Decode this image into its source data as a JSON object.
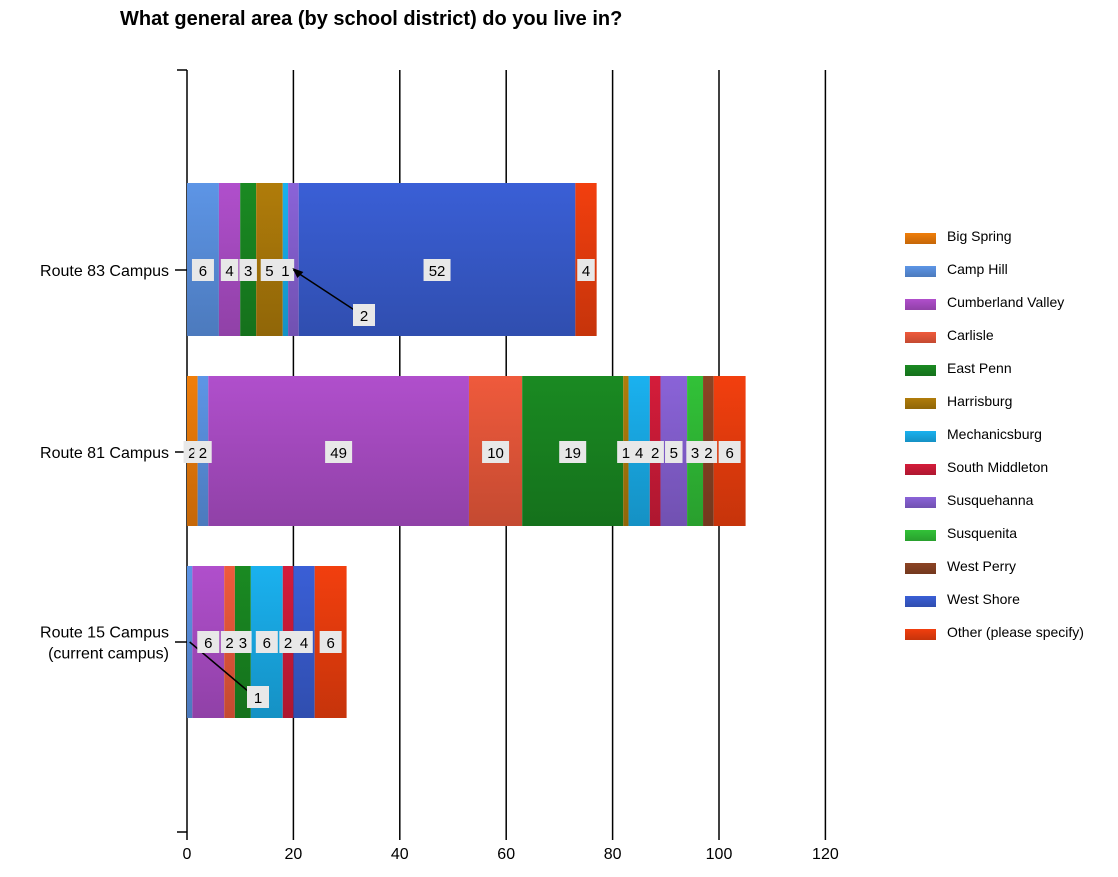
{
  "chart_data": {
    "type": "bar",
    "orientation": "horizontal",
    "stacked": true,
    "title": "What general area (by school district) do you live in?",
    "xlabel": "",
    "ylabel": "",
    "xlim": [
      0,
      120
    ],
    "x_ticks": [
      "0",
      "20",
      "40",
      "60",
      "80",
      "100",
      "120"
    ],
    "grid": true,
    "legend_position": "right",
    "categories": [
      [
        "Route 83 Campus"
      ],
      [
        "Route 81 Campus"
      ],
      [
        "Route 15 Campus",
        "(current campus)"
      ]
    ],
    "series": [
      {
        "name": "Big Spring",
        "color": "#f07e0a",
        "values": [
          0,
          2,
          0
        ]
      },
      {
        "name": "Camp Hill",
        "color": "#5d95e6",
        "values": [
          6,
          2,
          1
        ]
      },
      {
        "name": "Cumberland Valley",
        "color": "#b04fcc",
        "values": [
          4,
          49,
          6
        ]
      },
      {
        "name": "Carlisle",
        "color": "#ef5a3c",
        "values": [
          0,
          10,
          2
        ]
      },
      {
        "name": "East Penn",
        "color": "#1a8a22",
        "values": [
          3,
          19,
          3
        ]
      },
      {
        "name": "Harrisburg",
        "color": "#b07c0a",
        "values": [
          5,
          1,
          0
        ]
      },
      {
        "name": "Mechanicsburg",
        "color": "#1ab1ef",
        "values": [
          1,
          4,
          6
        ]
      },
      {
        "name": "South Middleton",
        "color": "#d41c3a",
        "values": [
          0,
          2,
          2
        ]
      },
      {
        "name": "Susquehanna",
        "color": "#8a63d8",
        "values": [
          2,
          5,
          0
        ]
      },
      {
        "name": "Susquenita",
        "color": "#32c238",
        "values": [
          0,
          3,
          0
        ]
      },
      {
        "name": "West Perry",
        "color": "#8c4424",
        "values": [
          0,
          2,
          0
        ]
      },
      {
        "name": "West Shore",
        "color": "#3a5fd6",
        "values": [
          52,
          0,
          4
        ]
      },
      {
        "name": "Other (please specify)",
        "color": "#f23f0e",
        "values": [
          4,
          6,
          6
        ]
      }
    ],
    "data_labels": [
      [
        "6",
        "4",
        "3",
        "5",
        "1",
        "2",
        "52",
        "4"
      ],
      [
        "2",
        "2",
        "49",
        "10",
        "19",
        "1",
        "4",
        "2",
        "5",
        "3",
        "2",
        "6"
      ],
      [
        "1",
        "6",
        "2",
        "3",
        "6",
        "2",
        "4",
        "6"
      ]
    ]
  }
}
